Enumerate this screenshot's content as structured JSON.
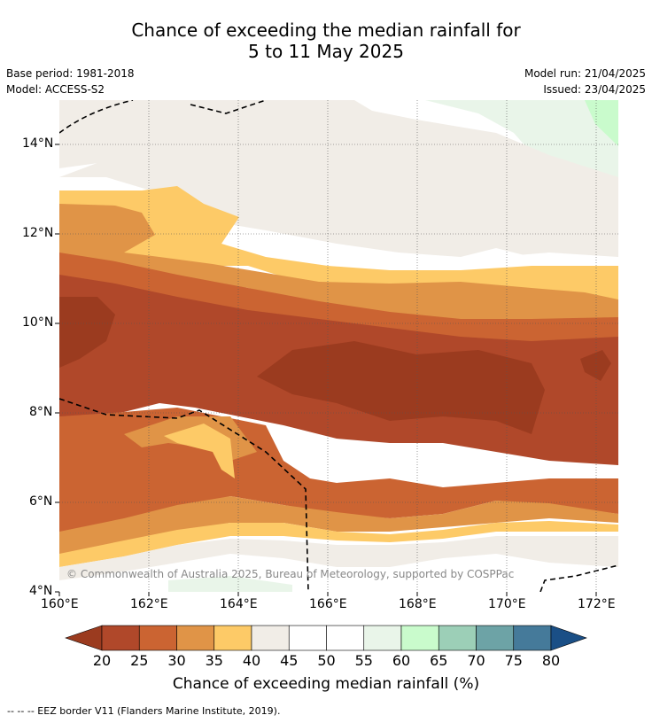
{
  "header": {
    "title_line1": "Chance of exceeding the median rainfall for",
    "title_line2": "5 to 11 May 2025",
    "base_period": "Base period: 1981-2018",
    "model": "Model: ACCESS-S2",
    "model_run": "Model run: 21/04/2025",
    "issued": "Issued: 23/04/2025"
  },
  "map": {
    "credit": "© Commonwealth of Australia 2025, Bureau of Meteorology, supported by COSPPac",
    "lat_labels": [
      "14°N",
      "12°N",
      "10°N",
      "8°N",
      "6°N",
      "4°N"
    ],
    "lon_labels": [
      "160°E",
      "162°E",
      "164°E",
      "166°E",
      "168°E",
      "170°E",
      "172°E"
    ]
  },
  "colorbar": {
    "ticks": [
      "20",
      "25",
      "30",
      "35",
      "40",
      "45",
      "50",
      "55",
      "60",
      "65",
      "70",
      "75",
      "80"
    ],
    "colors": [
      "#9b3b1f",
      "#b0482a",
      "#cb6432",
      "#e09447",
      "#fdca67",
      "#f1ede7",
      "#ffffff",
      "#ffffff",
      "#e9f5e9",
      "#c9fbcc",
      "#9ccfb7",
      "#6da3a6",
      "#457a9a"
    ],
    "low_extend_color": "#9b3b1f",
    "high_extend_color": "#1a4f86",
    "title": "Chance of exceeding median rainfall (%)"
  },
  "footer": {
    "legend_text": "-- -- -- EEZ border V11 (Flanders Marine Institute, 2019)."
  }
}
